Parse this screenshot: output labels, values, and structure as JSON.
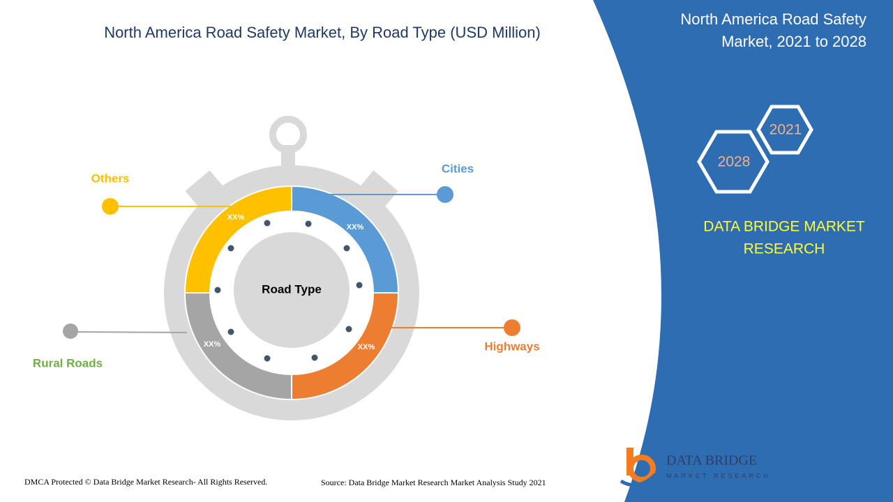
{
  "header": {
    "title": "North America Road Safety Market, By Road Type (USD Million)"
  },
  "diagram": {
    "center_label": "Road Type",
    "segments": [
      {
        "label": "Cities",
        "value_label": "XX%"
      },
      {
        "label": "Highways",
        "value_label": "XX%"
      },
      {
        "label": "Rural Roads",
        "value_label": "XX%"
      },
      {
        "label": "Others",
        "value_label": "XX%"
      }
    ]
  },
  "side_panel": {
    "title_lines": [
      "North America Road Safety",
      "Market, 2021 to 2028"
    ],
    "years": [
      "2021",
      "2028"
    ],
    "brand_lines": [
      "DATA BRIDGE MARKET",
      "RESEARCH"
    ]
  },
  "logo": {
    "name": "DATA BRIDGE",
    "tagline": "MARKET RESEARCH"
  },
  "footer": {
    "copyright": "DMCA Protected © Data Bridge Market Research- All Rights Reserved.",
    "source": "Source: Data Bridge Market Research Market Analysis Study 2021"
  }
}
